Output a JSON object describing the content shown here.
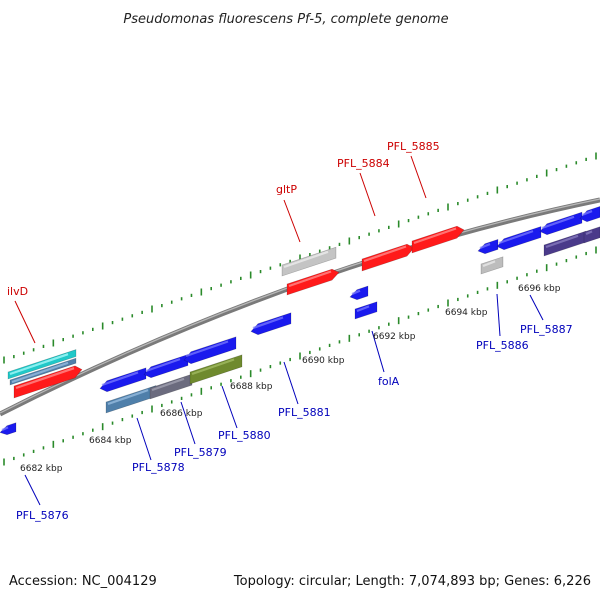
{
  "title": "Pseudomonas fluorescens Pf-5, complete genome",
  "footer": {
    "accession": "Accession: NC_004129",
    "summary": "Topology: circular; Length: 7,074,893 bp; Genes: 6,226"
  },
  "colors": {
    "forward_label": "#cc0000",
    "reverse_label": "#0000bb",
    "tick": "#2a8a2a",
    "backbone": "#8a8a8a"
  },
  "scale_ticks": [
    "6682 kbp",
    "6684 kbp",
    "6686 kbp",
    "6688 kbp",
    "6690 kbp",
    "6692 kbp",
    "6694 kbp",
    "6696 kbp"
  ],
  "forward_labels": [
    "ilvD",
    "gltP",
    "PFL_5884",
    "PFL_5885"
  ],
  "reverse_labels": [
    "PFL_5876",
    "PFL_5878",
    "PFL_5879",
    "PFL_5880",
    "PFL_5881",
    "folA",
    "PFL_5886",
    "PFL_5887"
  ]
}
